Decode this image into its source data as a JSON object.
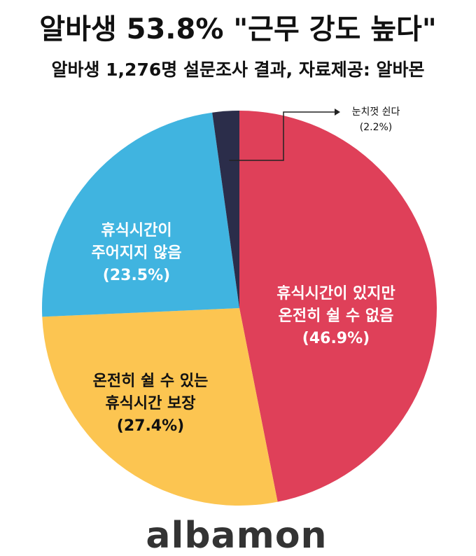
{
  "chart_data": {
    "type": "pie",
    "title": "알바생 53.8% \"근무 강도 높다\"",
    "subtitle": "알바생 1,276명 설문조사 결과, 자료제공: 알바몬",
    "categories": [
      [
        "휴식시간이 있지만",
        "온전히 쉴 수 없음"
      ],
      [
        "온전히 쉴 수 있는",
        "휴식시간 보장"
      ],
      [
        "휴식시간이",
        "주어지지 않음"
      ],
      [
        "눈치껏 쉰다"
      ]
    ],
    "values": [
      46.9,
      27.4,
      23.5,
      2.2
    ],
    "value_labels": [
      "(46.9%)",
      "(27.4%)",
      "(23.5%)",
      "(2.2%)"
    ],
    "colors": [
      "#df4059",
      "#fcc551",
      "#40b4e0",
      "#2b2d4a"
    ],
    "logo": "albamon"
  }
}
